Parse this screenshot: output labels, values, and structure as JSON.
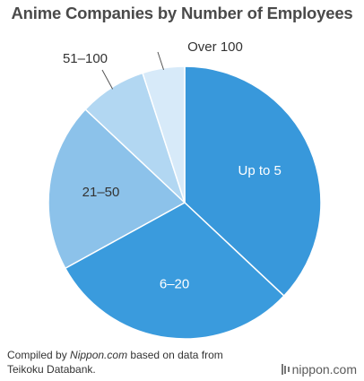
{
  "chart_data": {
    "type": "pie",
    "title": "Anime Companies by Number of Employees",
    "slices": [
      {
        "label": "Up to 5",
        "value": 37.0,
        "color": "#3898db"
      },
      {
        "label": "6–20",
        "value": 30.0,
        "color": "#3a9bdd"
      },
      {
        "label": "21–50",
        "value": 20.0,
        "color": "#8cc2ea"
      },
      {
        "label": "51–100",
        "value": 8.0,
        "color": "#b2d7f2"
      },
      {
        "label": "Over 100",
        "value": 5.0,
        "color": "#d7eaf9"
      }
    ]
  },
  "footer": {
    "source_prefix": "Compiled by ",
    "source_site": "Nippon.com",
    "source_line1_suffix": " based on data from",
    "source_line2": "Teikoku Databank.",
    "logo_text": "nippon.com"
  }
}
